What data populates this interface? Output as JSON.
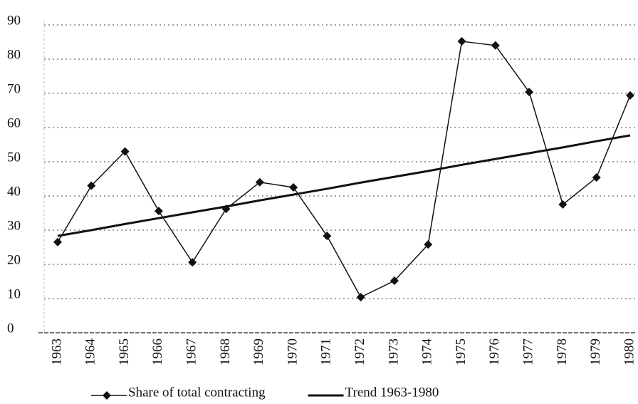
{
  "chart_data": {
    "type": "line",
    "categories": [
      "1963",
      "1964",
      "1965",
      "1966",
      "1967",
      "1968",
      "1969",
      "1970",
      "1971",
      "1972",
      "1973",
      "1974",
      "1975",
      "1976",
      "1977",
      "1978",
      "1979",
      "1980"
    ],
    "series": [
      {
        "name": "Share of total contracting",
        "color": "#111111",
        "marker": "diamond",
        "values": [
          26.5,
          43,
          53,
          35.6,
          20.6,
          36.2,
          44,
          42.5,
          28.3,
          10.4,
          15.2,
          25.8,
          85.2,
          84,
          70.4,
          37.5,
          45.4,
          69.4
        ]
      },
      {
        "name": "Trend 1963-1980",
        "color": "#111111",
        "values": [
          28.3,
          30.0,
          31.8,
          33.5,
          35.2,
          36.9,
          38.7,
          40.4,
          42.1,
          43.9,
          45.6,
          47.3,
          49.1,
          50.8,
          52.5,
          54.2,
          56.0,
          57.7
        ]
      }
    ],
    "ylim": [
      0,
      90
    ],
    "yticks": [
      0,
      10,
      20,
      30,
      40,
      50,
      60,
      70,
      80,
      90
    ],
    "grid": true,
    "legend": "bottom"
  }
}
